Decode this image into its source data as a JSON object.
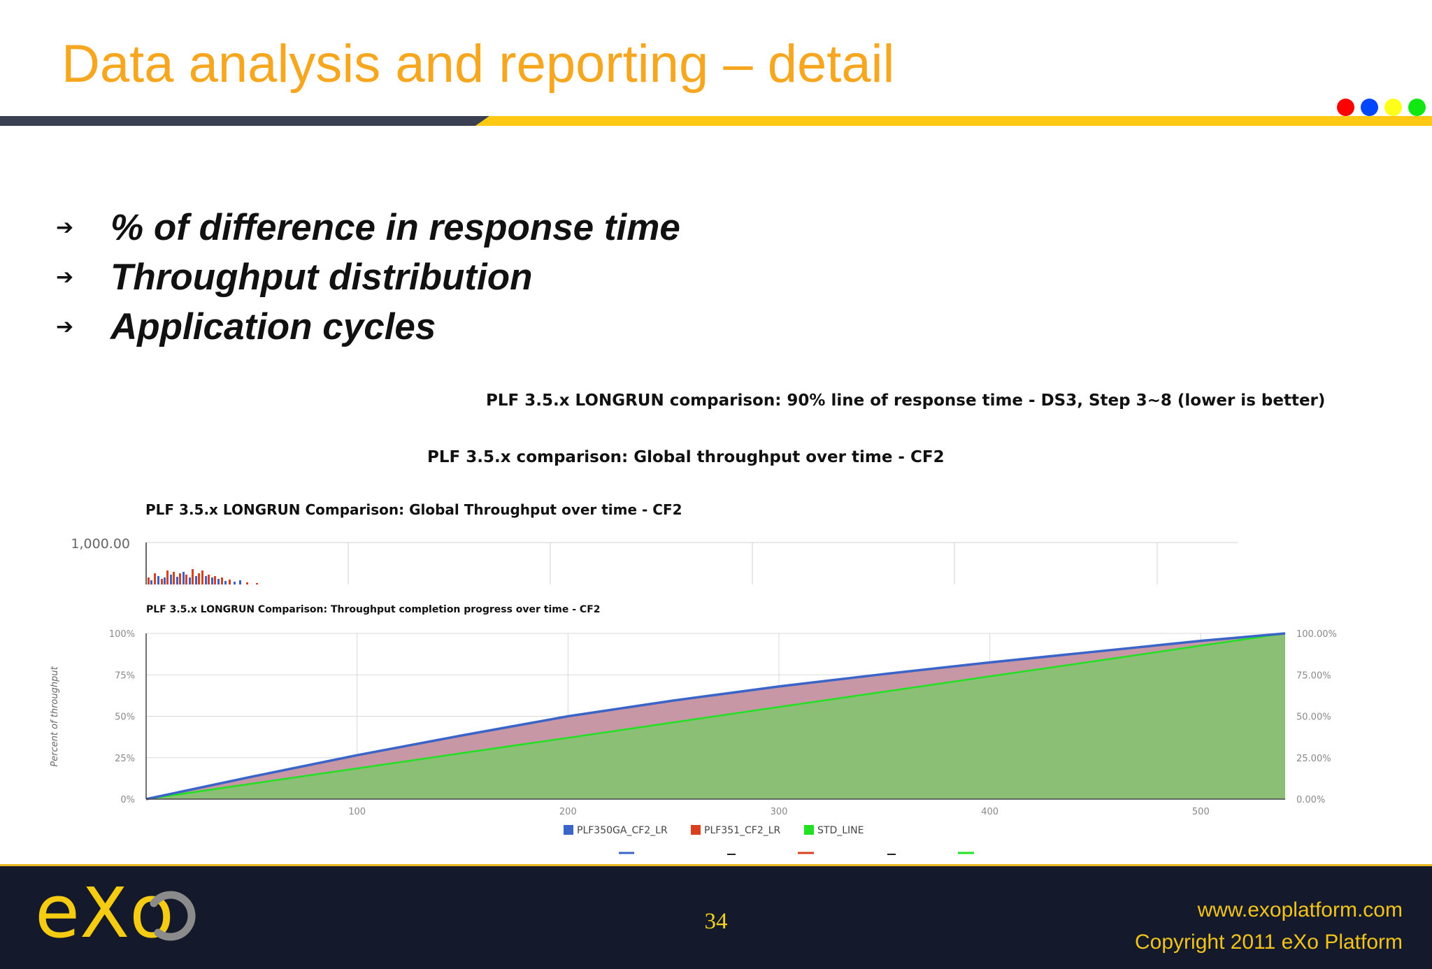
{
  "slide": {
    "title": "Data analysis and reporting – detail",
    "bullets": [
      "% of difference in response time",
      "Throughput distribution",
      "Application cycles"
    ],
    "bullet_icon": "arrow-right-icon",
    "dot_colors": [
      "#ff0000",
      "#0047ff",
      "#ffff1a",
      "#11e711"
    ],
    "header_bar_colors": {
      "dark": "#3a3f52",
      "accent": "#ffc812"
    }
  },
  "charts": {
    "response_time_title": "PLF 3.5.x LONGRUN comparison: 90% line of response time - DS3, Step 3~8 (lower is better)",
    "global_throughput_title": "PLF 3.5.x comparison: Global throughput over time - CF2",
    "longrun_throughput_title": "PLF 3.5.x LONGRUN Comparison: Global Throughput over time - CF2",
    "longrun_throughput_ytick": "1,000.00",
    "completion_title": "PLF 3.5.x LONGRUN Comparison: Throughput completion progress over time - CF2"
  },
  "chart_data": {
    "type": "area",
    "title": "PLF 3.5.x LONGRUN Comparison: Throughput completion progress over time - CF2",
    "ylabel": "Percent of throughput",
    "xlabel": "",
    "x_ticks": [
      "100",
      "200",
      "300",
      "400",
      "500"
    ],
    "y_ticks_left": [
      "0%",
      "25%",
      "50%",
      "75%",
      "100%"
    ],
    "y_ticks_right": [
      "0.00%",
      "25.00%",
      "50.00%",
      "75.00%",
      "100.00%"
    ],
    "xlim": [
      0,
      540
    ],
    "ylim": [
      0,
      100
    ],
    "grid": true,
    "legend_position": "bottom",
    "x": [
      0,
      50,
      100,
      150,
      200,
      250,
      300,
      350,
      400,
      450,
      500,
      540
    ],
    "series": [
      {
        "name": "PLF350GA_CF2_LR",
        "color": "#3b64c8",
        "values": [
          0,
          13.5,
          26.5,
          38.5,
          50,
          59.5,
          68,
          75.5,
          82.5,
          89,
          95.5,
          100
        ]
      },
      {
        "name": "PLF351_CF2_LR",
        "color": "#d9401e",
        "values": [
          0,
          13.5,
          26.5,
          38.5,
          50,
          59.5,
          68,
          75.5,
          82.5,
          89,
          95.5,
          100
        ]
      },
      {
        "name": "STD_LINE",
        "color": "#22e022",
        "values": [
          0,
          9.3,
          18.5,
          27.8,
          37,
          46.3,
          55.6,
          64.8,
          74.1,
          83.3,
          92.6,
          100
        ]
      }
    ]
  },
  "footer": {
    "page_number": "34",
    "url": "www.exoplatform.com",
    "copyright": "Copyright 2011 eXo Platform",
    "logo_text": "eXo"
  }
}
